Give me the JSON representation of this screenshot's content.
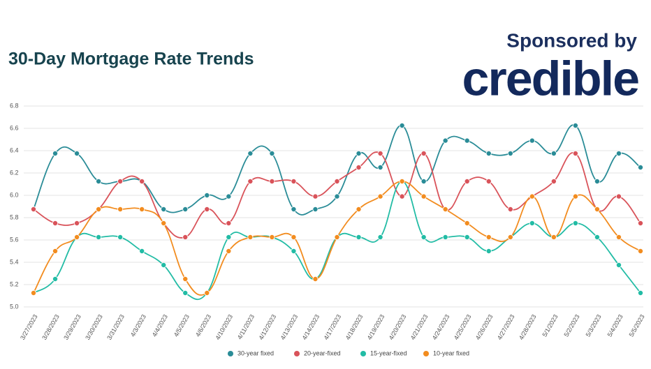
{
  "branding": {
    "sponsor": "Sponsored by",
    "brand": "credible"
  },
  "chart_data": {
    "type": "line",
    "title": "30-Day Mortgage Rate Trends",
    "categories": [
      "3/27/2023",
      "3/28/2023",
      "3/29/2023",
      "3/30/2023",
      "3/31/2023",
      "4/3/2023",
      "4/4/2023",
      "4/5/2023",
      "4/6/2023",
      "4/10/2023",
      "4/11/2023",
      "4/12/2023",
      "4/13/2023",
      "4/14/2023",
      "4/17/2023",
      "4/18/2023",
      "4/19/2023",
      "4/20/2023",
      "4/21/2023",
      "4/24/2023",
      "4/25/2023",
      "4/26/2023",
      "4/27/2023",
      "4/28/2023",
      "5/1/2023",
      "5/2/2023",
      "5/3/2023",
      "5/4/2023",
      "5/5/2023"
    ],
    "series": [
      {
        "name": "30-year fixed",
        "color": "#2a8c97",
        "values": [
          5.875,
          6.375,
          6.375,
          6.125,
          6.125,
          6.125,
          5.875,
          5.875,
          6.0,
          5.99,
          6.375,
          6.375,
          5.875,
          5.875,
          5.99,
          6.375,
          6.25,
          6.625,
          6.125,
          6.49,
          6.49,
          6.375,
          6.375,
          6.49,
          6.375,
          6.625,
          6.125,
          6.375,
          6.25
        ]
      },
      {
        "name": "20-year-fixed",
        "color": "#d9535a",
        "values": [
          5.875,
          5.75,
          5.75,
          5.875,
          6.125,
          6.125,
          5.75,
          5.625,
          5.875,
          5.75,
          6.125,
          6.125,
          6.125,
          5.99,
          6.125,
          6.25,
          6.375,
          5.99,
          6.375,
          5.875,
          6.125,
          6.125,
          5.875,
          5.99,
          6.125,
          6.375,
          5.875,
          5.99,
          5.75
        ]
      },
      {
        "name": "15-year-fixed",
        "color": "#22bca5",
        "values": [
          5.125,
          5.25,
          5.625,
          5.625,
          5.625,
          5.5,
          5.375,
          5.125,
          5.125,
          5.625,
          5.625,
          5.625,
          5.5,
          5.25,
          5.625,
          5.625,
          5.625,
          6.125,
          5.625,
          5.625,
          5.625,
          5.5,
          5.625,
          5.75,
          5.625,
          5.75,
          5.625,
          5.375,
          5.125
        ]
      },
      {
        "name": "10-year fixed",
        "color": "#f28c1f",
        "values": [
          5.125,
          5.5,
          5.625,
          5.875,
          5.875,
          5.875,
          5.75,
          5.25,
          5.125,
          5.5,
          5.625,
          5.625,
          5.625,
          5.25,
          5.625,
          5.875,
          5.99,
          6.125,
          5.99,
          5.875,
          5.75,
          5.625,
          5.625,
          5.99,
          5.625,
          5.99,
          5.875,
          5.625,
          5.5
        ]
      }
    ],
    "ylim": [
      5.0,
      6.8
    ],
    "yticks": [
      {
        "value": 5.0,
        "label": "5.0"
      },
      5.2,
      5.4,
      5.6,
      5.8,
      {
        "value": 6.0,
        "label": "6.0"
      },
      6.2,
      6.4,
      6.6,
      6.8
    ],
    "grid": true,
    "legend": "bottom"
  }
}
